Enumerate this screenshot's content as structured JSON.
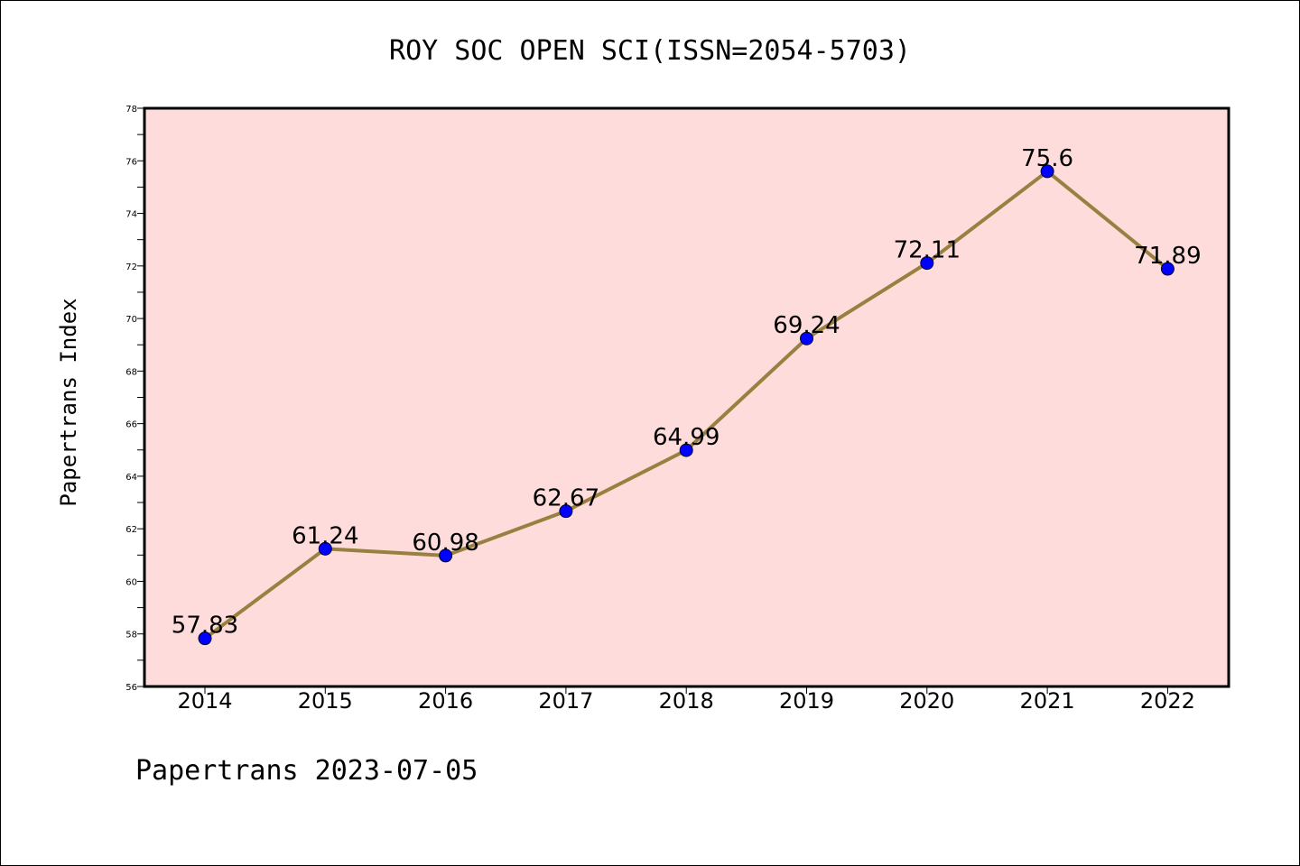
{
  "chart_data": {
    "type": "line",
    "title": "ROY SOC OPEN SCI(ISSN=2054-5703)",
    "xlabel": "",
    "ylabel": "Papertrans Index",
    "footer": "Papertrans 2023-07-05",
    "categories": [
      "2014",
      "2015",
      "2016",
      "2017",
      "2018",
      "2019",
      "2020",
      "2021",
      "2022"
    ],
    "values": [
      57.83,
      61.24,
      60.98,
      62.67,
      64.99,
      69.24,
      72.11,
      75.6,
      71.89
    ],
    "data_labels": [
      "57.83",
      "61.24",
      "60.98",
      "62.67",
      "64.99",
      "69.24",
      "72.11",
      "75.6",
      "71.89"
    ],
    "ylim": [
      56,
      78
    ],
    "yticks": [
      56,
      58,
      60,
      62,
      64,
      66,
      68,
      70,
      72,
      74,
      76,
      78
    ],
    "grid": false,
    "colors": {
      "plot_background": "#fddcdb",
      "line": "#9a8040",
      "marker": "#0000ff",
      "axis": "#000000"
    }
  }
}
